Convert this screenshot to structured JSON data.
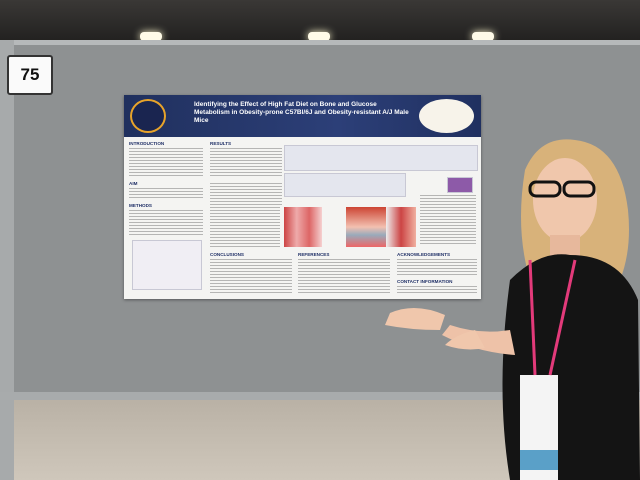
{
  "board_number": "75",
  "poster": {
    "title": "Identifying the Effect of High Fat Diet on Bone and Glucose Metabolism in Obesity-prone C57Bl/6J and Obesity-resistant A/J Male Mice",
    "sections": [
      "INTRODUCTION",
      "AIM",
      "METHODS",
      "RESULTS",
      "CONCLUSIONS",
      "REFERENCES",
      "ACKNOWLEDGEMENTS",
      "CONTACT INFORMATION"
    ]
  }
}
